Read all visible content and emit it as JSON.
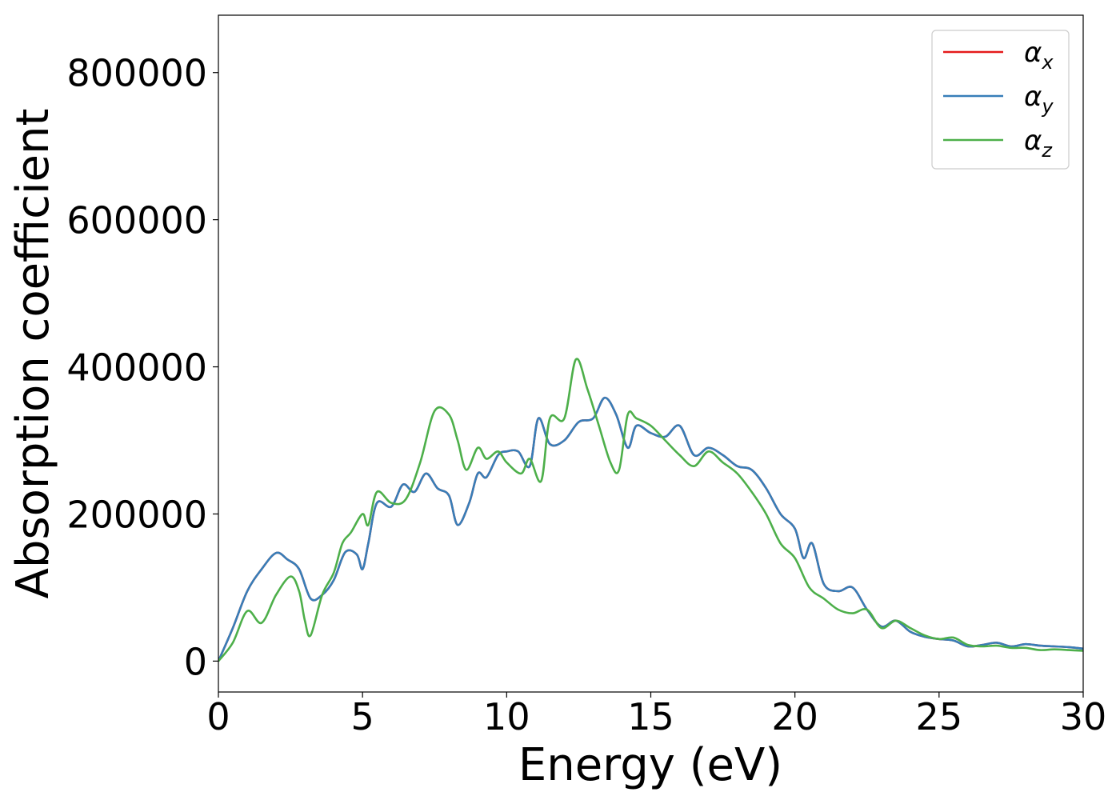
{
  "chart_data": {
    "type": "line",
    "xlabel": "Energy (eV)",
    "ylabel": "Absorption coefficient",
    "xlim": [
      0,
      30
    ],
    "ylim": [
      -42000,
      878000
    ],
    "xticks": [
      0,
      5,
      10,
      15,
      20,
      25,
      30
    ],
    "xtick_labels": [
      "0",
      "5",
      "10",
      "15",
      "20",
      "25",
      "30"
    ],
    "yticks": [
      0,
      200000,
      400000,
      600000,
      800000
    ],
    "ytick_labels": [
      "0",
      "200000",
      "400000",
      "600000",
      "800000"
    ],
    "grid": false,
    "legend_position": "top-right",
    "series": [
      {
        "name": "αx",
        "legend_symbol": "α",
        "legend_subscript": "x",
        "color": "#e41a1c",
        "x": [
          0,
          0.5,
          1,
          1.5,
          2,
          2.4,
          2.8,
          3.2,
          3.6,
          4,
          4.4,
          4.8,
          5,
          5.2,
          5.5,
          6,
          6.4,
          6.8,
          7.2,
          7.6,
          8,
          8.3,
          8.7,
          9,
          9.3,
          9.7,
          10,
          10.4,
          10.8,
          11.1,
          11.5,
          12,
          12.5,
          13,
          13.4,
          13.8,
          14.2,
          14.5,
          15,
          15.5,
          16,
          16.5,
          17,
          17.5,
          18,
          18.5,
          19,
          19.5,
          20,
          20.3,
          20.6,
          21,
          21.5,
          22,
          22.5,
          23,
          23.5,
          24,
          24.5,
          25,
          25.5,
          26,
          26.5,
          27,
          27.5,
          28,
          28.5,
          29,
          29.5,
          30
        ],
        "values": [
          0,
          45000,
          95000,
          125000,
          147000,
          138000,
          125000,
          85000,
          90000,
          110000,
          148000,
          145000,
          125000,
          160000,
          215000,
          210000,
          240000,
          230000,
          255000,
          235000,
          225000,
          185000,
          215000,
          255000,
          250000,
          280000,
          285000,
          285000,
          265000,
          330000,
          295000,
          300000,
          325000,
          330000,
          358000,
          335000,
          290000,
          320000,
          310000,
          305000,
          320000,
          280000,
          290000,
          280000,
          265000,
          260000,
          235000,
          200000,
          180000,
          140000,
          160000,
          105000,
          95000,
          100000,
          70000,
          47000,
          55000,
          40000,
          33000,
          30000,
          28000,
          20000,
          22000,
          25000,
          20000,
          23000,
          21000,
          20000,
          19000,
          17000
        ]
      },
      {
        "name": "αy",
        "legend_symbol": "α",
        "legend_subscript": "y",
        "color": "#377eb8",
        "x": [
          0,
          0.5,
          1,
          1.5,
          2,
          2.4,
          2.8,
          3.2,
          3.6,
          4,
          4.4,
          4.8,
          5,
          5.2,
          5.5,
          6,
          6.4,
          6.8,
          7.2,
          7.6,
          8,
          8.3,
          8.7,
          9,
          9.3,
          9.7,
          10,
          10.4,
          10.8,
          11.1,
          11.5,
          12,
          12.5,
          13,
          13.4,
          13.8,
          14.2,
          14.5,
          15,
          15.5,
          16,
          16.5,
          17,
          17.5,
          18,
          18.5,
          19,
          19.5,
          20,
          20.3,
          20.6,
          21,
          21.5,
          22,
          22.5,
          23,
          23.5,
          24,
          24.5,
          25,
          25.5,
          26,
          26.5,
          27,
          27.5,
          28,
          28.5,
          29,
          29.5,
          30
        ],
        "values": [
          0,
          45000,
          95000,
          125000,
          147000,
          138000,
          125000,
          85000,
          90000,
          110000,
          148000,
          145000,
          125000,
          160000,
          215000,
          210000,
          240000,
          230000,
          255000,
          235000,
          225000,
          185000,
          215000,
          255000,
          250000,
          280000,
          285000,
          285000,
          265000,
          330000,
          295000,
          300000,
          325000,
          330000,
          358000,
          335000,
          290000,
          320000,
          310000,
          305000,
          320000,
          280000,
          290000,
          280000,
          265000,
          260000,
          235000,
          200000,
          180000,
          140000,
          160000,
          105000,
          95000,
          100000,
          70000,
          47000,
          55000,
          40000,
          33000,
          30000,
          28000,
          20000,
          22000,
          25000,
          20000,
          23000,
          21000,
          20000,
          19000,
          17000
        ]
      },
      {
        "name": "αz",
        "legend_symbol": "α",
        "legend_subscript": "z",
        "color": "#4daf4a",
        "x": [
          0,
          0.5,
          1,
          1.5,
          2,
          2.5,
          2.8,
          3,
          3.2,
          3.6,
          4,
          4.3,
          4.6,
          5,
          5.2,
          5.5,
          6,
          6.5,
          7,
          7.5,
          8,
          8.3,
          8.6,
          9,
          9.3,
          9.7,
          10,
          10.5,
          10.8,
          11.2,
          11.5,
          12,
          12.4,
          12.8,
          13.2,
          13.6,
          13.9,
          14.2,
          14.5,
          15,
          15.5,
          16,
          16.5,
          17,
          17.5,
          18,
          18.5,
          19,
          19.5,
          20,
          20.5,
          21,
          21.5,
          22,
          22.5,
          23,
          23.5,
          24,
          24.5,
          25,
          25.5,
          26,
          26.5,
          27,
          27.5,
          28,
          28.5,
          29,
          29.5,
          30
        ],
        "values": [
          0,
          25000,
          68000,
          52000,
          90000,
          115000,
          95000,
          55000,
          35000,
          90000,
          120000,
          160000,
          175000,
          200000,
          185000,
          230000,
          215000,
          220000,
          270000,
          340000,
          335000,
          300000,
          260000,
          290000,
          275000,
          285000,
          270000,
          255000,
          275000,
          245000,
          330000,
          330000,
          410000,
          370000,
          320000,
          270000,
          260000,
          335000,
          330000,
          320000,
          300000,
          280000,
          265000,
          285000,
          270000,
          255000,
          230000,
          200000,
          160000,
          140000,
          100000,
          85000,
          70000,
          65000,
          70000,
          45000,
          55000,
          45000,
          35000,
          30000,
          32000,
          22000,
          20000,
          21000,
          18000,
          18000,
          15000,
          16000,
          15000,
          14000
        ]
      }
    ]
  }
}
